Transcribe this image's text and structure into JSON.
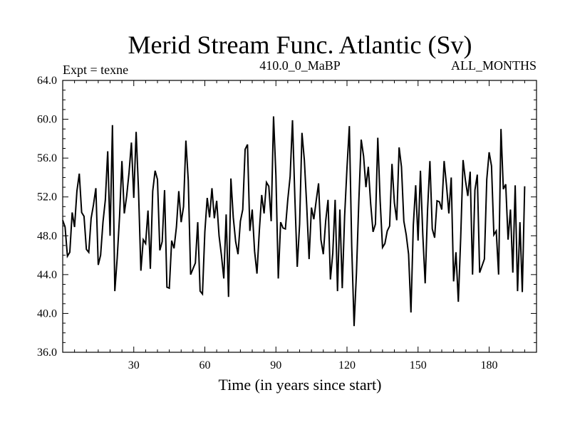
{
  "chart_data": {
    "type": "line",
    "title": "Merid Stream Func. Atlantic (Sv)",
    "subtitle_left": "Expt = texne",
    "subtitle_center": "410.0_0_MaBP",
    "subtitle_right": "ALL_MONTHS",
    "xlabel": "Time (in years since start)",
    "ylabel": "",
    "xlim": [
      0,
      200
    ],
    "ylim": [
      36.0,
      64.0
    ],
    "x_ticks": [
      30,
      60,
      90,
      120,
      150,
      180
    ],
    "x_tick_labels": [
      "30",
      "60",
      "90",
      "120",
      "150",
      "180"
    ],
    "y_ticks": [
      36.0,
      40.0,
      44.0,
      48.0,
      52.0,
      56.0,
      60.0,
      64.0
    ],
    "y_tick_labels": [
      "36.0",
      "40.0",
      "44.0",
      "48.0",
      "52.0",
      "56.0",
      "60.0",
      "64.0"
    ],
    "grid": false,
    "series": [
      {
        "name": "Merid Stream Func. Atlantic",
        "color": "#000000",
        "x_start": 0,
        "x_step": 1,
        "values": [
          49.6,
          48.9,
          45.9,
          46.3,
          50.4,
          48.9,
          52.6,
          54.4,
          50.4,
          50.0,
          46.6,
          46.3,
          49.8,
          51.2,
          52.9,
          45.0,
          46.0,
          49.4,
          51.7,
          56.7,
          48.0,
          59.4,
          42.3,
          45.7,
          50.0,
          55.7,
          50.3,
          52.1,
          54.5,
          57.6,
          51.9,
          58.7,
          52.7,
          44.4,
          47.6,
          47.2,
          50.6,
          44.6,
          52.6,
          54.7,
          53.8,
          46.5,
          47.4,
          52.7,
          42.7,
          42.6,
          47.5,
          46.7,
          48.9,
          52.6,
          49.4,
          51.0,
          57.8,
          53.7,
          44.0,
          44.6,
          45.2,
          49.4,
          42.3,
          42.0,
          48.4,
          51.9,
          49.9,
          52.9,
          49.8,
          51.6,
          48.0,
          46.0,
          43.6,
          50.2,
          41.7,
          53.9,
          49.9,
          47.4,
          46.1,
          49.5,
          50.7,
          56.9,
          57.4,
          48.5,
          50.7,
          46.4,
          44.1,
          48.5,
          52.2,
          50.3,
          53.5,
          53.1,
          49.5,
          60.3,
          54.2,
          43.6,
          49.4,
          48.8,
          48.7,
          51.7,
          54.1,
          59.9,
          51.9,
          44.8,
          49.2,
          58.6,
          55.8,
          51.1,
          45.6,
          50.9,
          49.7,
          51.6,
          53.4,
          47.6,
          46.1,
          49.5,
          51.7,
          43.5,
          46.2,
          51.7,
          42.3,
          50.7,
          42.6,
          50.0,
          55.0,
          59.3,
          46.9,
          38.7,
          44.2,
          51.6,
          57.9,
          56.2,
          53.0,
          55.1,
          51.3,
          48.4,
          49.2,
          58.1,
          51.6,
          46.8,
          47.2,
          48.5,
          49.0,
          55.4,
          51.4,
          49.6,
          57.1,
          55.1,
          49.5,
          48.1,
          46.1,
          40.1,
          49.1,
          53.2,
          47.5,
          54.7,
          48.1,
          43.1,
          50.6,
          55.7,
          48.7,
          47.8,
          51.6,
          51.5,
          50.7,
          55.7,
          53.2,
          50.3,
          54.0,
          43.3,
          46.3,
          41.2,
          47.8,
          55.8,
          53.7,
          52.1,
          54.6,
          44.0,
          52.7,
          54.3,
          44.2,
          44.9,
          45.6,
          53.8,
          56.6,
          55.2,
          48.1,
          48.5,
          44.0,
          59.0,
          52.8,
          53.3,
          47.6,
          50.7,
          44.2,
          53.2,
          42.3,
          49.4,
          42.2,
          53.1
        ]
      }
    ]
  }
}
